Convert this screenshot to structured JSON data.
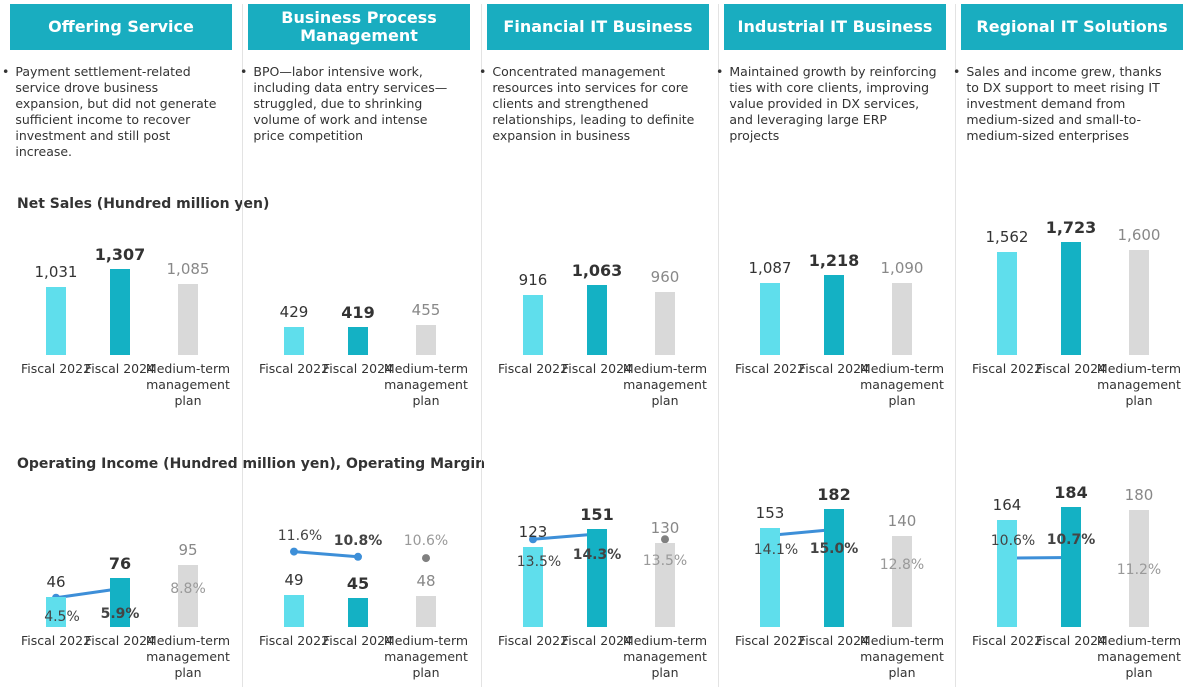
{
  "segments": [
    {
      "title": "Offering Service",
      "description": "Payment settlement-related service drove business expansion, but did not generate sufficient income to recover investment and still post increase."
    },
    {
      "title": "Business Process Management",
      "description": "BPO—labor intensive work, including data entry services—struggled, due to shrinking volume of work and intense price competition"
    },
    {
      "title": "Financial IT Business",
      "description": "Concentrated management resources into services for core clients and strengthened relationships, leading to definite expansion in business"
    },
    {
      "title": "Industrial IT Business",
      "description": "Maintained growth by reinforcing ties with core clients, improving value provided in DX services, and leveraging large ERP projects"
    },
    {
      "title": "Regional IT Solutions",
      "description": "Sales and income grew, thanks to DX support to meet rising IT investment demand from medium-sized and small-to-medium-sized enterprises"
    }
  ],
  "net_sales_heading": "Net Sales (Hundred million yen)",
  "operating_income_heading": "Operating Income (Hundred million yen), Operating Margin",
  "chart_data": [
    {
      "type": "bar",
      "categories": [
        "Fiscal 2022",
        "Fiscal 2024",
        "Medium-term management plan"
      ],
      "values": [
        1031,
        1307,
        1085
      ],
      "value_labels": [
        "1,031",
        "1,307",
        "1,085"
      ],
      "colors": [
        "#5fdeec",
        "#14b1c4",
        "#d9d9d9"
      ],
      "ylim": [
        0,
        1900
      ]
    },
    {
      "type": "bar",
      "categories": [
        "Fiscal 2022",
        "Fiscal 2024",
        "Medium-term management plan"
      ],
      "values": [
        429,
        419,
        455
      ],
      "colors": [
        "#5fdeec",
        "#14b1c4",
        "#d9d9d9"
      ],
      "ylim": [
        0,
        1900
      ]
    },
    {
      "type": "bar",
      "categories": [
        "Fiscal 2022",
        "Fiscal 2024",
        "Medium-term management plan"
      ],
      "values": [
        916,
        1063,
        960
      ],
      "value_labels": [
        "916",
        "1,063",
        "960"
      ],
      "colors": [
        "#5fdeec",
        "#14b1c4",
        "#d9d9d9"
      ],
      "ylim": [
        0,
        1900
      ]
    },
    {
      "type": "bar",
      "categories": [
        "Fiscal 2022",
        "Fiscal 2024",
        "Medium-term management plan"
      ],
      "values": [
        1087,
        1218,
        1090
      ],
      "value_labels": [
        "1,087",
        "1,218",
        "1,090"
      ],
      "colors": [
        "#5fdeec",
        "#14b1c4",
        "#d9d9d9"
      ],
      "ylim": [
        0,
        1900
      ]
    },
    {
      "type": "bar",
      "categories": [
        "Fiscal 2022",
        "Fiscal 2024",
        "Medium-term management plan"
      ],
      "values": [
        1562,
        1723,
        1600
      ],
      "value_labels": [
        "1,562",
        "1,723",
        "1,600"
      ],
      "colors": [
        "#5fdeec",
        "#14b1c4",
        "#d9d9d9"
      ],
      "ylim": [
        0,
        1900
      ]
    },
    {
      "type": "bar_line",
      "categories": [
        "Fiscal 2022",
        "Fiscal 2024",
        "Medium-term management plan"
      ],
      "values": [
        46,
        76,
        95
      ],
      "colors": [
        "#5fdeec",
        "#14b1c4",
        "#d9d9d9"
      ],
      "ylim": [
        0,
        200
      ],
      "line_values": [
        4.5,
        5.9,
        8.8
      ],
      "line_value_labels": [
        "4.5%",
        "5.9%",
        "8.8%"
      ],
      "line_color": "#3d8fd8",
      "plan_point_color": "#808080",
      "y2lim": [
        0,
        20
      ]
    },
    {
      "type": "bar_line",
      "categories": [
        "Fiscal 2022",
        "Fiscal 2024",
        "Medium-term management plan"
      ],
      "values": [
        49,
        45,
        48
      ],
      "colors": [
        "#5fdeec",
        "#14b1c4",
        "#d9d9d9"
      ],
      "ylim": [
        0,
        200
      ],
      "line_values": [
        11.6,
        10.8,
        10.6
      ],
      "line_value_labels": [
        "11.6%",
        "10.8%",
        "10.6%"
      ],
      "line_color": "#3d8fd8",
      "plan_point_color": "#808080",
      "y2lim": [
        0,
        20
      ]
    },
    {
      "type": "bar_line",
      "categories": [
        "Fiscal 2022",
        "Fiscal 2024",
        "Medium-term management plan"
      ],
      "values": [
        123,
        151,
        130
      ],
      "colors": [
        "#5fdeec",
        "#14b1c4",
        "#d9d9d9"
      ],
      "ylim": [
        0,
        200
      ],
      "line_values": [
        13.5,
        14.3,
        13.5
      ],
      "line_value_labels": [
        "13.5%",
        "14.3%",
        "13.5%"
      ],
      "line_color": "#3d8fd8",
      "plan_point_color": "#808080",
      "y2lim": [
        0,
        20
      ]
    },
    {
      "type": "bar_line",
      "categories": [
        "Fiscal 2022",
        "Fiscal 2024",
        "Medium-term management plan"
      ],
      "values": [
        153,
        182,
        140
      ],
      "colors": [
        "#5fdeec",
        "#14b1c4",
        "#d9d9d9"
      ],
      "ylim": [
        0,
        200
      ],
      "line_values": [
        14.1,
        15.0,
        12.8
      ],
      "line_value_labels": [
        "14.1%",
        "15.0%",
        "12.8%"
      ],
      "line_color": "#3d8fd8",
      "plan_point_color": "#808080",
      "y2lim": [
        0,
        20
      ]
    },
    {
      "type": "bar_line",
      "categories": [
        "Fiscal 2022",
        "Fiscal 2024",
        "Medium-term management plan"
      ],
      "values": [
        164,
        184,
        180
      ],
      "colors": [
        "#5fdeec",
        "#14b1c4",
        "#d9d9d9"
      ],
      "ylim": [
        0,
        200
      ],
      "line_values": [
        10.6,
        10.7,
        11.2
      ],
      "line_value_labels": [
        "10.6%",
        "10.7%",
        "11.2%"
      ],
      "line_color": "#3d8fd8",
      "plan_point_color": "#808080",
      "y2lim": [
        0,
        20
      ]
    }
  ]
}
